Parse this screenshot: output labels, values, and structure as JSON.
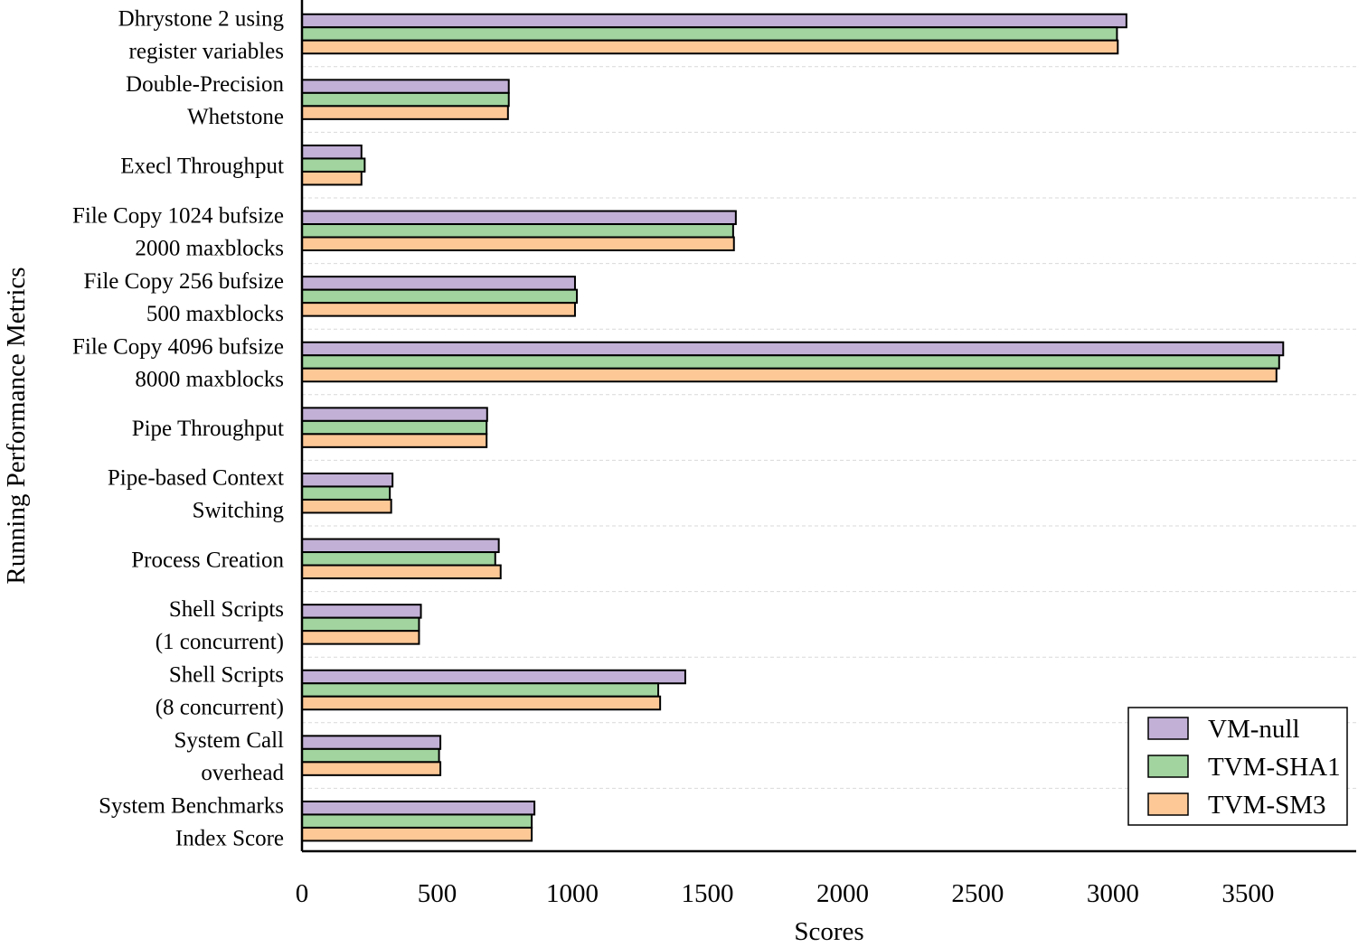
{
  "chart_data": {
    "type": "bar",
    "orientation": "horizontal",
    "categories": [
      [
        "Dhrystone 2 using",
        "register variables"
      ],
      [
        "Double-Precision",
        "Whetstone"
      ],
      [
        "Execl Throughput"
      ],
      [
        "File Copy 1024 bufsize",
        "2000 maxblocks"
      ],
      [
        "File Copy 256 bufsize",
        "500 maxblocks"
      ],
      [
        "File Copy 4096 bufsize",
        "8000 maxblocks"
      ],
      [
        "Pipe Throughput"
      ],
      [
        "Pipe-based Context",
        "Switching"
      ],
      [
        "Process Creation"
      ],
      [
        "Shell Scripts ",
        "(1 concurrent)"
      ],
      [
        "Shell Scripts",
        "(8 concurrent)"
      ],
      [
        "System Call",
        "overhead"
      ],
      [
        "System Benchmarks",
        "Index Score"
      ]
    ],
    "series": [
      {
        "name": "VM-null",
        "color": "#c2b0d6",
        "values": [
          3050,
          765,
          220,
          1605,
          1010,
          3630,
          685,
          335,
          728,
          440,
          1418,
          512,
          860
        ]
      },
      {
        "name": "TVM-SHA1",
        "color": "#a1d49f",
        "values": [
          3015,
          765,
          232,
          1595,
          1017,
          3615,
          683,
          325,
          715,
          433,
          1318,
          507,
          850
        ]
      },
      {
        "name": "TVM-SM3",
        "color": "#fdc796",
        "values": [
          3018,
          762,
          220,
          1598,
          1010,
          3605,
          683,
          330,
          735,
          433,
          1325,
          512,
          850
        ]
      }
    ],
    "xlabel": "Scores",
    "ylabel": "Running Performance Metrics",
    "xlim": [
      0,
      3900
    ],
    "xticks": [
      0,
      500,
      1000,
      1500,
      2000,
      2500,
      3000,
      3500
    ],
    "xtick_labels": [
      "0",
      "500",
      "1000",
      "1500",
      "2000",
      "2500",
      "3000",
      "3500"
    ],
    "grid": "horizontal dashed",
    "legend_position": "bottom-right"
  }
}
